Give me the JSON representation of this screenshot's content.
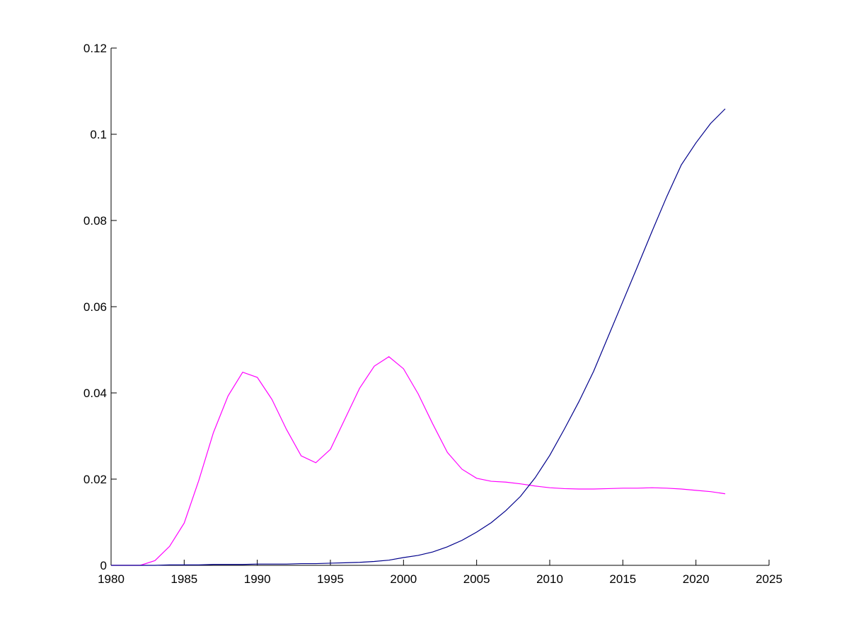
{
  "chart_data": {
    "type": "line",
    "x": [
      1980,
      1981,
      1982,
      1983,
      1984,
      1985,
      1986,
      1987,
      1988,
      1989,
      1990,
      1991,
      1992,
      1993,
      1994,
      1995,
      1996,
      1997,
      1998,
      1999,
      2000,
      2001,
      2002,
      2003,
      2004,
      2005,
      2006,
      2007,
      2008,
      2009,
      2010,
      2011,
      2012,
      2013,
      2014,
      2015,
      2016,
      2017,
      2018,
      2019,
      2020,
      2021,
      2022
    ],
    "series": [
      {
        "color": "#ff00ff",
        "values": [
          0,
          0,
          0,
          0.0011,
          0.0044,
          0.0098,
          0.0197,
          0.0308,
          0.0393,
          0.0448,
          0.0436,
          0.0385,
          0.0315,
          0.0254,
          0.0238,
          0.0269,
          0.034,
          0.0411,
          0.0462,
          0.0484,
          0.0456,
          0.0398,
          0.0328,
          0.0262,
          0.0223,
          0.0202,
          0.0195,
          0.0193,
          0.0189,
          0.0184,
          0.018,
          0.0178,
          0.0177,
          0.0177,
          0.0178,
          0.0179,
          0.0179,
          0.018,
          0.0179,
          0.0177,
          0.0174,
          0.0171,
          0.0166
        ]
      },
      {
        "color": "#00008b",
        "values": [
          0,
          0,
          0,
          0,
          0.0001,
          0.0001,
          0.0001,
          0.0002,
          0.0002,
          0.0002,
          0.0003,
          0.0003,
          0.0003,
          0.0004,
          0.0004,
          0.0005,
          0.0006,
          0.0007,
          0.0009,
          0.0012,
          0.0018,
          0.0023,
          0.0031,
          0.0043,
          0.0058,
          0.0077,
          0.0099,
          0.0127,
          0.016,
          0.0203,
          0.0255,
          0.0316,
          0.038,
          0.045,
          0.0531,
          0.0612,
          0.0693,
          0.0775,
          0.0855,
          0.0929,
          0.098,
          0.1025,
          0.1059
        ]
      }
    ],
    "xlim": [
      1980,
      2025
    ],
    "xticks": [
      1980,
      1985,
      1990,
      1995,
      2000,
      2005,
      2010,
      2015,
      2020,
      2025
    ],
    "ylim": [
      0,
      0.12
    ],
    "yticks": [
      0,
      0.02,
      0.04,
      0.06,
      0.08,
      0.1,
      0.12
    ]
  }
}
